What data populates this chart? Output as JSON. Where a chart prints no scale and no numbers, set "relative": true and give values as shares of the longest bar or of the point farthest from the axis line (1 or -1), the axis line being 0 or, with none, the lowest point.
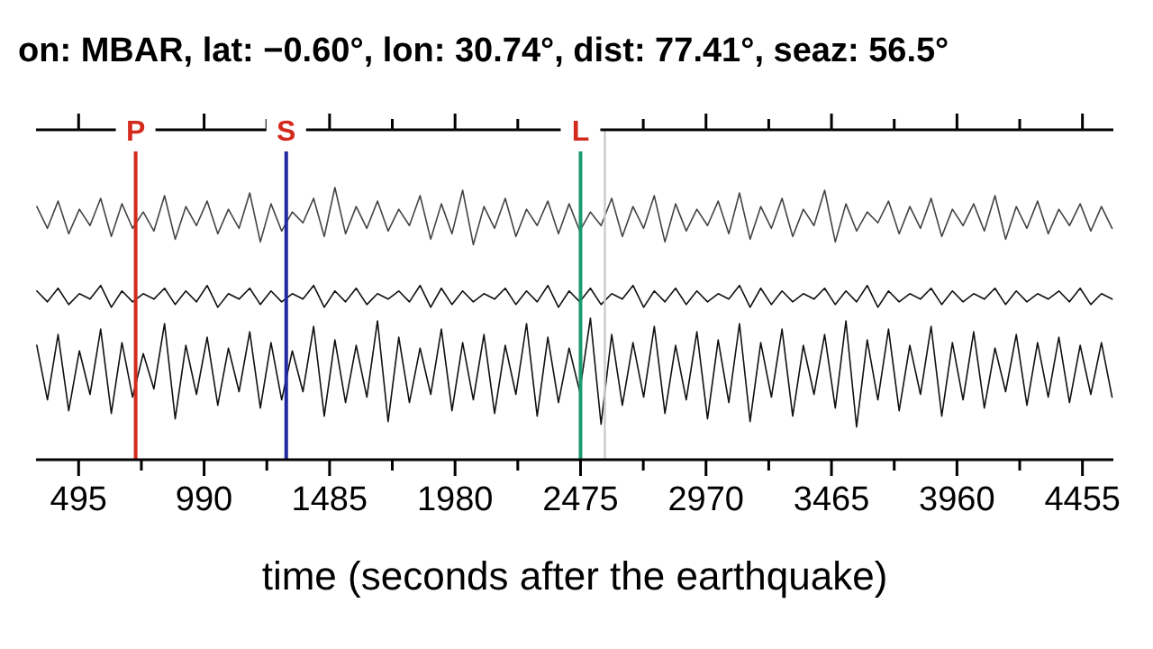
{
  "chart_data": {
    "type": "line",
    "title": "on: MBAR, lat: −0.60°, lon: 30.74°, dist: 77.41°, seaz: 56.5°",
    "xlabel": "time (seconds after the earthquake)",
    "relative": true,
    "xlim": [
      327,
      4577
    ],
    "xticks": [
      495,
      {
        "value": 742.5,
        "label": null
      },
      990,
      {
        "value": 1237.5,
        "label": null
      },
      1485,
      {
        "value": 1732.5,
        "label": null
      },
      1980,
      {
        "value": 2227.5,
        "label": null
      },
      2475,
      {
        "value": 2722.5,
        "label": null
      },
      2970,
      {
        "value": 3217.5,
        "label": null
      },
      3465,
      {
        "value": 3712.5,
        "label": null
      },
      3960,
      {
        "value": 4207.5,
        "label": null
      },
      4455
    ],
    "x": [
      330,
      372,
      414,
      456,
      498,
      540,
      582,
      624,
      666,
      708,
      750,
      792,
      834,
      876,
      918,
      960,
      1002,
      1044,
      1086,
      1128,
      1170,
      1212,
      1254,
      1296,
      1338,
      1380,
      1422,
      1464,
      1506,
      1548,
      1590,
      1632,
      1674,
      1716,
      1758,
      1800,
      1842,
      1884,
      1926,
      1968,
      2010,
      2052,
      2094,
      2136,
      2178,
      2220,
      2262,
      2304,
      2346,
      2388,
      2430,
      2472,
      2514,
      2556,
      2598,
      2640,
      2682,
      2724,
      2766,
      2808,
      2850,
      2892,
      2934,
      2976,
      3018,
      3060,
      3102,
      3144,
      3186,
      3228,
      3270,
      3312,
      3354,
      3396,
      3438,
      3480,
      3522,
      3564,
      3606,
      3648,
      3690,
      3732,
      3774,
      3816,
      3858,
      3900,
      3942,
      3984,
      4026,
      4068,
      4110,
      4152,
      4194,
      4236,
      4278,
      4320,
      4362,
      4404,
      4446,
      4488,
      4530,
      4572
    ],
    "series": [
      {
        "color": "#444444",
        "values": [
          0.93,
          0.85,
          0.95,
          0.83,
          0.92,
          0.86,
          0.96,
          0.82,
          0.94,
          0.85,
          0.91,
          0.84,
          0.97,
          0.81,
          0.93,
          0.86,
          0.95,
          0.83,
          0.92,
          0.85,
          0.98,
          0.8,
          0.94,
          0.84,
          0.91,
          0.87,
          0.96,
          0.82,
          1.0,
          0.83,
          0.93,
          0.85,
          0.95,
          0.84,
          0.92,
          0.86,
          0.97,
          0.81,
          0.94,
          0.83,
          0.99,
          0.79,
          0.93,
          0.85,
          0.96,
          0.82,
          0.92,
          0.86,
          0.95,
          0.83,
          0.94,
          0.84,
          0.91,
          0.86,
          0.96,
          0.82,
          0.93,
          0.85,
          0.97,
          0.8,
          0.94,
          0.84,
          0.92,
          0.86,
          0.95,
          0.83,
          0.98,
          0.81,
          0.93,
          0.85,
          0.96,
          0.82,
          0.92,
          0.86,
          0.99,
          0.8,
          0.94,
          0.84,
          0.91,
          0.87,
          0.95,
          0.83,
          0.93,
          0.85,
          0.96,
          0.82,
          0.92,
          0.86,
          0.94,
          0.84,
          0.97,
          0.81,
          0.93,
          0.85,
          0.95,
          0.83,
          0.92,
          0.86,
          0.94,
          0.84,
          0.93,
          0.85
        ]
      },
      {
        "color": "#111111",
        "values": [
          0.62,
          0.58,
          0.63,
          0.57,
          0.61,
          0.59,
          0.64,
          0.56,
          0.62,
          0.58,
          0.61,
          0.59,
          0.63,
          0.57,
          0.62,
          0.58,
          0.64,
          0.56,
          0.61,
          0.59,
          0.63,
          0.57,
          0.62,
          0.58,
          0.61,
          0.59,
          0.64,
          0.56,
          0.62,
          0.58,
          0.63,
          0.57,
          0.61,
          0.59,
          0.62,
          0.58,
          0.64,
          0.56,
          0.63,
          0.57,
          0.62,
          0.58,
          0.61,
          0.59,
          0.63,
          0.57,
          0.62,
          0.58,
          0.64,
          0.56,
          0.62,
          0.58,
          0.63,
          0.57,
          0.61,
          0.59,
          0.64,
          0.56,
          0.62,
          0.58,
          0.63,
          0.57,
          0.62,
          0.58,
          0.61,
          0.59,
          0.64,
          0.56,
          0.63,
          0.57,
          0.62,
          0.58,
          0.61,
          0.59,
          0.63,
          0.57,
          0.62,
          0.58,
          0.64,
          0.56,
          0.62,
          0.58,
          0.61,
          0.59,
          0.63,
          0.57,
          0.62,
          0.58,
          0.61,
          0.59,
          0.63,
          0.57,
          0.62,
          0.58,
          0.61,
          0.59,
          0.62,
          0.58,
          0.63,
          0.57,
          0.61,
          0.59
        ]
      },
      {
        "color": "#111111",
        "values": [
          0.42,
          0.22,
          0.46,
          0.18,
          0.4,
          0.24,
          0.48,
          0.17,
          0.43,
          0.23,
          0.39,
          0.26,
          0.5,
          0.15,
          0.42,
          0.24,
          0.45,
          0.2,
          0.41,
          0.25,
          0.47,
          0.19,
          0.43,
          0.22,
          0.4,
          0.25,
          0.49,
          0.16,
          0.44,
          0.21,
          0.42,
          0.23,
          0.51,
          0.14,
          0.45,
          0.21,
          0.41,
          0.24,
          0.48,
          0.18,
          0.43,
          0.22,
          0.46,
          0.17,
          0.42,
          0.24,
          0.5,
          0.16,
          0.45,
          0.21,
          0.41,
          0.25,
          0.52,
          0.13,
          0.46,
          0.2,
          0.43,
          0.23,
          0.49,
          0.17,
          0.42,
          0.22,
          0.47,
          0.15,
          0.44,
          0.21,
          0.5,
          0.14,
          0.43,
          0.23,
          0.48,
          0.16,
          0.42,
          0.24,
          0.46,
          0.19,
          0.51,
          0.12,
          0.44,
          0.22,
          0.48,
          0.18,
          0.42,
          0.24,
          0.49,
          0.16,
          0.43,
          0.22,
          0.47,
          0.19,
          0.41,
          0.25,
          0.46,
          0.2,
          0.43,
          0.23,
          0.45,
          0.21,
          0.42,
          0.24,
          0.43,
          0.23
        ]
      }
    ],
    "ref_lines": [
      {
        "axis": "x",
        "value": 720,
        "label": "P",
        "color": "#d42a1e"
      },
      {
        "axis": "x",
        "value": 1314,
        "label": "S",
        "color": "#1f2a9e"
      },
      {
        "axis": "x",
        "value": 2475,
        "label": "L",
        "color": "#1a9a6e"
      },
      {
        "axis": "x",
        "value": 2571,
        "label": null,
        "color": "#cccccc"
      }
    ]
  }
}
